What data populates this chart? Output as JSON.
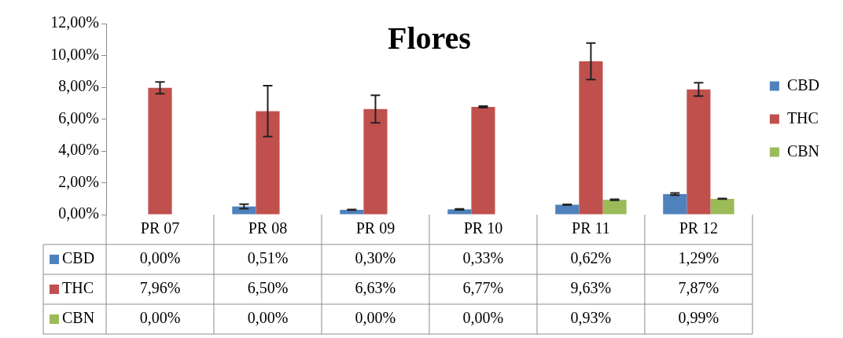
{
  "chart_data": {
    "type": "bar",
    "title": "Flores",
    "categories": [
      "PR 07",
      "PR 08",
      "PR 09",
      "PR 10",
      "PR 11",
      "PR 12"
    ],
    "series": [
      {
        "name": "CBD",
        "color": "#4f81bd",
        "values": [
          0,
          0.51,
          0.3,
          0.33,
          0.62,
          1.29
        ],
        "errors": [
          null,
          0.14,
          0.02,
          0.03,
          0.02,
          0.07
        ],
        "value_labels": [
          "0,00%",
          "0,51%",
          "0,30%",
          "0,33%",
          "0,62%",
          "1,29%"
        ]
      },
      {
        "name": "THC",
        "color": "#c0504d",
        "values": [
          7.96,
          6.5,
          6.63,
          6.77,
          9.63,
          7.87
        ],
        "errors": [
          0.37,
          1.6,
          0.87,
          0.05,
          1.15,
          0.42
        ],
        "value_labels": [
          "7,96%",
          "6,50%",
          "6,63%",
          "6,77%",
          "9,63%",
          "7,87%"
        ]
      },
      {
        "name": "CBN",
        "color": "#9bbb59",
        "values": [
          0,
          0,
          0,
          0,
          0.93,
          0.99
        ],
        "errors": [
          null,
          null,
          null,
          null,
          0.03,
          0.02
        ],
        "value_labels": [
          "0,00%",
          "0,00%",
          "0,00%",
          "0,00%",
          "0,93%",
          "0,99%"
        ]
      }
    ],
    "ylim": [
      0,
      12
    ],
    "yticks": [
      {
        "value": 0,
        "label": "0,00%"
      },
      {
        "value": 2,
        "label": "2,00%"
      },
      {
        "value": 4,
        "label": "4,00%"
      },
      {
        "value": 6,
        "label": "6,00%"
      },
      {
        "value": 8,
        "label": "8,00%"
      },
      {
        "value": 10,
        "label": "10,00%"
      },
      {
        "value": 12,
        "label": "12,00%"
      }
    ],
    "grid": false,
    "legend": "right"
  }
}
